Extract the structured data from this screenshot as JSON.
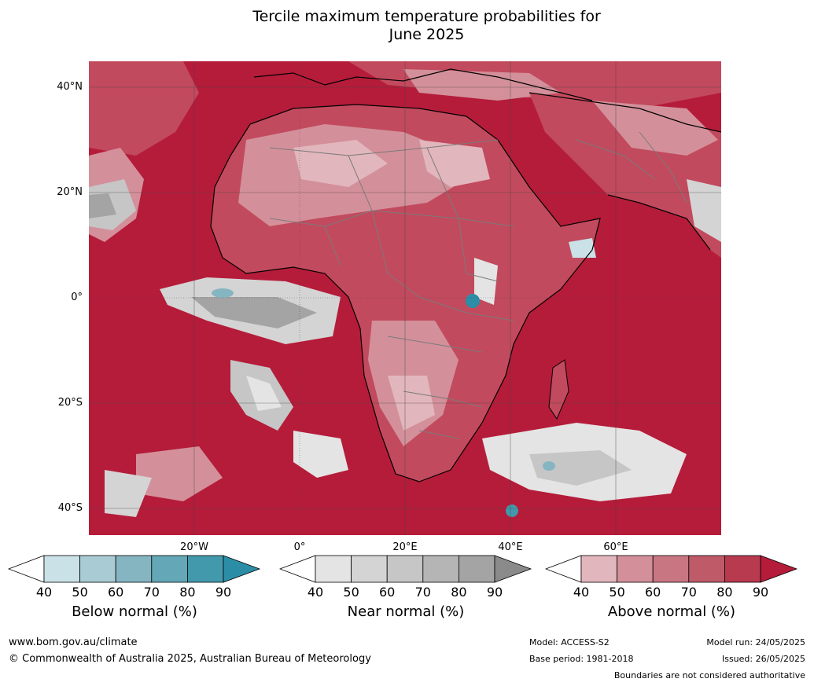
{
  "title": {
    "line1": "Tercile maximum temperature probabilities for",
    "line2": "June 2025"
  },
  "map": {
    "lat_labels": [
      "40°N",
      "20°N",
      "0°",
      "20°S",
      "40°S"
    ],
    "lon_labels": [
      "20°W",
      "0°",
      "20°E",
      "40°E",
      "60°E"
    ]
  },
  "legend": [
    {
      "label": "Below normal (%)",
      "ticks": [
        "40",
        "50",
        "60",
        "70",
        "80",
        "90"
      ],
      "colors": [
        "#ffffff",
        "#c9e1e7",
        "#a9cbd3",
        "#86b5c2",
        "#64a7b6",
        "#4399ac",
        "#2c8ea6"
      ]
    },
    {
      "label": "Near normal (%)",
      "ticks": [
        "40",
        "50",
        "60",
        "70",
        "80",
        "90"
      ],
      "colors": [
        "#ffffff",
        "#e4e4e4",
        "#d4d4d4",
        "#c6c6c6",
        "#b5b5b5",
        "#a4a4a4",
        "#8a8a8a"
      ]
    },
    {
      "label": "Above normal (%)",
      "ticks": [
        "40",
        "50",
        "60",
        "70",
        "80",
        "90"
      ],
      "colors": [
        "#ffffff",
        "#e2b6bd",
        "#d3909a",
        "#c87682",
        "#bf5b69",
        "#b83a4f",
        "#b51c3a"
      ]
    }
  ],
  "footer": {
    "url": "www.bom.gov.au/climate",
    "copyright": "© Commonwealth of Australia 2025, Australian Bureau of Meteorology",
    "model": "Model: ACCESS-S2",
    "base_period": "Base period: 1981-2018",
    "model_run": "Model run: 24/05/2025",
    "issued": "Issued: 26/05/2025",
    "disclaimer": "Boundaries are not considered authoritative"
  }
}
